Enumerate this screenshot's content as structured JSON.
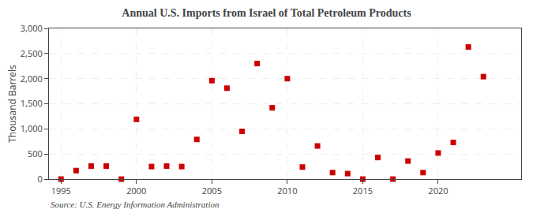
{
  "chart_data": {
    "type": "scatter",
    "title": "Annual U.S. Imports from Israel of Total Petroleum Products",
    "ylabel": "Thousand Barrels",
    "source": "Source: U.S. Energy Information Administration",
    "x": [
      1995,
      1996,
      1997,
      1998,
      1999,
      2000,
      2001,
      2002,
      2003,
      2004,
      2005,
      2006,
      2007,
      2008,
      2009,
      2010,
      2011,
      2012,
      2013,
      2014,
      2015,
      2016,
      2017,
      2018,
      2019,
      2020,
      2021,
      2022,
      2023
    ],
    "values": [
      0,
      170,
      260,
      260,
      0,
      1190,
      250,
      260,
      250,
      790,
      1960,
      1810,
      950,
      2300,
      1420,
      2000,
      240,
      660,
      130,
      110,
      0,
      430,
      0,
      360,
      130,
      520,
      730,
      2630,
      2040
    ],
    "color": "#cc0000",
    "marker": "square",
    "xlim": [
      1994.2,
      2025.5
    ],
    "xticks": [
      1995,
      2000,
      2005,
      2010,
      2015,
      2020
    ],
    "ylim": [
      0,
      3000
    ],
    "yticks": [
      0,
      500,
      {
        "value": 1000,
        "label": "1,000"
      },
      {
        "value": 1500,
        "label": "1,500"
      },
      {
        "value": 2000,
        "label": "2,000"
      },
      {
        "value": 2500,
        "label": "2,500"
      },
      {
        "value": 3000,
        "label": "3,000"
      }
    ],
    "grid": true
  }
}
